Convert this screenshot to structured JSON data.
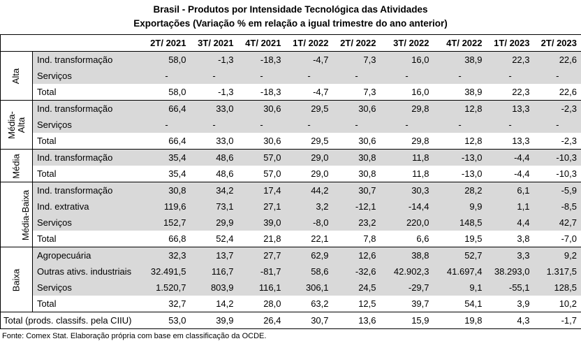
{
  "title_line1": "Brasil - Produtos por Intensidade Tecnológica das Atividades",
  "title_line2": "Exportações (Variação % em relação a igual trimestre do ano anterior)",
  "columns": [
    "2T/ 2021",
    "3T/ 2021",
    "4T/ 2021",
    "1T/ 2022",
    "2T/ 2022",
    "3T/ 2022",
    "4T/ 2022",
    "1T/ 2023",
    "2T/ 2023"
  ],
  "groups": [
    {
      "name": "Alta",
      "rows": [
        {
          "label": "Ind. transformação",
          "values": [
            "58,0",
            "-1,3",
            "-18,3",
            "-4,7",
            "7,3",
            "16,0",
            "38,9",
            "22,3",
            "22,6"
          ]
        },
        {
          "label": "Serviços",
          "values": [
            "-",
            "-",
            "-",
            "-",
            "-",
            "-",
            "-",
            "-",
            "-"
          ]
        },
        {
          "label": "Total",
          "values": [
            "58,0",
            "-1,3",
            "-18,3",
            "-4,7",
            "7,3",
            "16,0",
            "38,9",
            "22,3",
            "22,6"
          ]
        }
      ]
    },
    {
      "name": "Média-Alta",
      "rows": [
        {
          "label": "Ind. transformação",
          "values": [
            "66,4",
            "33,0",
            "30,6",
            "29,5",
            "30,6",
            "29,8",
            "12,8",
            "13,3",
            "-2,3"
          ]
        },
        {
          "label": "Serviços",
          "values": [
            "-",
            "-",
            "-",
            "-",
            "-",
            "-",
            "-",
            "-",
            "-"
          ]
        },
        {
          "label": "Total",
          "values": [
            "66,4",
            "33,0",
            "30,6",
            "29,5",
            "30,6",
            "29,8",
            "12,8",
            "13,3",
            "-2,3"
          ]
        }
      ]
    },
    {
      "name": "Média",
      "rows": [
        {
          "label": "Ind. transformação",
          "values": [
            "35,4",
            "48,6",
            "57,0",
            "29,0",
            "30,8",
            "11,8",
            "-13,0",
            "-4,4",
            "-10,3"
          ]
        },
        {
          "label": "Total",
          "values": [
            "35,4",
            "48,6",
            "57,0",
            "29,0",
            "30,8",
            "11,8",
            "-13,0",
            "-4,4",
            "-10,3"
          ]
        }
      ]
    },
    {
      "name": "Média-Baixa",
      "rows": [
        {
          "label": "Ind. transformação",
          "values": [
            "30,8",
            "34,2",
            "17,4",
            "44,2",
            "30,7",
            "30,3",
            "28,2",
            "6,1",
            "-5,9"
          ]
        },
        {
          "label": "Ind. extrativa",
          "values": [
            "119,6",
            "73,1",
            "27,1",
            "3,2",
            "-12,1",
            "-14,4",
            "9,9",
            "1,1",
            "-8,5"
          ]
        },
        {
          "label": "Serviços",
          "values": [
            "152,7",
            "29,9",
            "39,0",
            "-8,0",
            "23,2",
            "220,0",
            "148,5",
            "4,4",
            "42,7"
          ]
        },
        {
          "label": "Total",
          "values": [
            "66,8",
            "52,4",
            "21,8",
            "22,1",
            "7,8",
            "6,6",
            "19,5",
            "3,8",
            "-7,0"
          ]
        }
      ]
    },
    {
      "name": "Baixa",
      "rows": [
        {
          "label": "Agropecuária",
          "values": [
            "32,3",
            "13,7",
            "27,7",
            "62,9",
            "12,6",
            "38,8",
            "52,7",
            "3,3",
            "9,2"
          ]
        },
        {
          "label": "Outras ativs. industriais",
          "values": [
            "32.491,5",
            "116,7",
            "-81,7",
            "58,6",
            "-32,6",
            "42.902,3",
            "41.697,4",
            "38.293,0",
            "1.317,5"
          ]
        },
        {
          "label": "Serviços",
          "values": [
            "1.520,7",
            "803,9",
            "116,1",
            "306,1",
            "24,5",
            "-29,7",
            "9,1",
            "-55,1",
            "128,5"
          ]
        },
        {
          "label": "Total",
          "values": [
            "32,7",
            "14,2",
            "28,0",
            "63,2",
            "12,5",
            "39,7",
            "54,1",
            "3,9",
            "10,2"
          ]
        }
      ]
    }
  ],
  "grand_total": {
    "label": "Total (prods. classifs. pela CIIU)",
    "values": [
      "53,0",
      "39,9",
      "26,4",
      "30,7",
      "13,6",
      "15,9",
      "19,8",
      "4,3",
      "-1,7"
    ]
  },
  "source": "Fonte: Comex Stat. Elaboração própria com base em classificação da OCDE."
}
